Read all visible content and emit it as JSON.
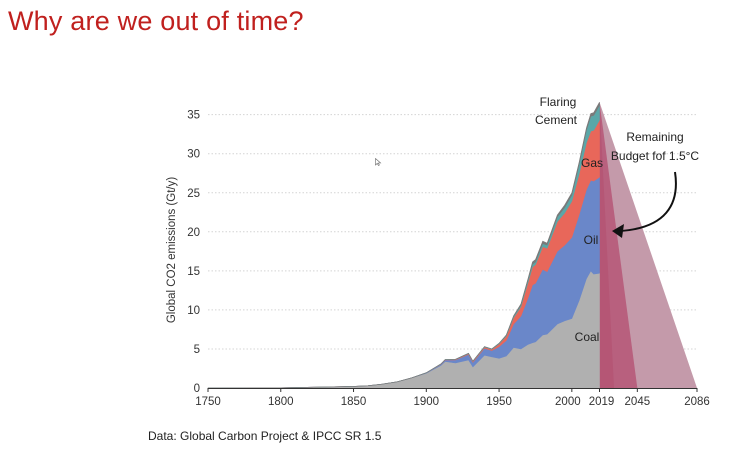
{
  "slide": {
    "title": "Why are we out of time?",
    "source_caption": "Data: Global Carbon Project & IPCC SR 1.5"
  },
  "colors": {
    "title": "#c0201e",
    "coal": "#b0b0b0",
    "oil": "#6a87c9",
    "gas": "#e8675a",
    "cement": "#5aa7a8",
    "flaring": "#7a7a7a",
    "budget_outer": "#c49aaa",
    "budget_middle": "#b8607e",
    "budget_inner": "#b2506f"
  },
  "chart_data": {
    "type": "area",
    "title": "",
    "ylabel": "Global CO2 emissions (Gt/y)",
    "xlabel": "",
    "xlim": [
      1750,
      2086
    ],
    "ylim": [
      0,
      37
    ],
    "x_ticks": [
      1750,
      1800,
      1850,
      1900,
      1950,
      2000,
      2019,
      2045,
      2086
    ],
    "y_ticks": [
      0,
      5,
      10,
      15,
      20,
      25,
      30,
      35
    ],
    "grid": "horizontal dotted",
    "stack_order": [
      "Coal",
      "Oil",
      "Gas",
      "Cement",
      "Flaring"
    ],
    "years": [
      1750,
      1800,
      1850,
      1860,
      1870,
      1880,
      1890,
      1900,
      1910,
      1913,
      1920,
      1929,
      1932,
      1940,
      1945,
      1950,
      1955,
      1960,
      1965,
      1970,
      1973,
      1975,
      1980,
      1983,
      1990,
      1995,
      2000,
      2005,
      2010,
      2013,
      2015,
      2019
    ],
    "series": [
      {
        "name": "Coal",
        "values": [
          0.01,
          0.03,
          0.2,
          0.3,
          0.5,
          0.8,
          1.3,
          1.9,
          2.9,
          3.4,
          3.2,
          3.6,
          2.7,
          4.2,
          4.0,
          3.8,
          4.1,
          5.2,
          5.0,
          5.6,
          5.8,
          5.9,
          6.8,
          6.9,
          8.2,
          8.6,
          8.9,
          11.2,
          14.0,
          15.0,
          14.6,
          14.7
        ]
      },
      {
        "name": "Oil",
        "values": [
          0,
          0,
          0,
          0,
          0,
          0,
          0,
          0.05,
          0.15,
          0.2,
          0.4,
          0.7,
          0.6,
          0.9,
          0.8,
          1.5,
          2.0,
          3.0,
          4.2,
          6.0,
          7.4,
          7.5,
          8.4,
          8.0,
          9.3,
          9.7,
          10.4,
          11.0,
          11.4,
          11.6,
          11.9,
          12.3
        ]
      },
      {
        "name": "Gas",
        "values": [
          0,
          0,
          0,
          0,
          0,
          0,
          0,
          0,
          0.02,
          0.03,
          0.05,
          0.1,
          0.1,
          0.15,
          0.15,
          0.35,
          0.55,
          0.8,
          1.2,
          2.0,
          2.3,
          2.4,
          2.9,
          3.0,
          3.8,
          4.1,
          4.6,
          5.2,
          6.0,
          6.3,
          6.5,
          7.3
        ]
      },
      {
        "name": "Cement",
        "values": [
          0,
          0,
          0,
          0,
          0,
          0,
          0,
          0.01,
          0.02,
          0.02,
          0.03,
          0.04,
          0.04,
          0.05,
          0.05,
          0.07,
          0.1,
          0.15,
          0.2,
          0.3,
          0.35,
          0.35,
          0.4,
          0.4,
          0.6,
          0.7,
          0.8,
          1.2,
          1.6,
          1.9,
          1.9,
          1.9
        ]
      },
      {
        "name": "Flaring",
        "values": [
          0,
          0,
          0,
          0,
          0,
          0,
          0,
          0,
          0,
          0,
          0,
          0,
          0,
          0,
          0,
          0.02,
          0.05,
          0.1,
          0.15,
          0.2,
          0.3,
          0.3,
          0.3,
          0.25,
          0.25,
          0.3,
          0.3,
          0.3,
          0.3,
          0.35,
          0.35,
          0.4
        ]
      }
    ],
    "series_labels": {
      "coal": "Coal",
      "oil": "Oil",
      "gas": "Gas",
      "cement": "Cement",
      "flaring": "Flaring"
    },
    "budget": {
      "peak_year": 2019,
      "peak_value": 36.6,
      "inner_end_year": 2045,
      "outer_end_year": 2086,
      "annotation": [
        "Remaining",
        "Budget fof 1.5°C"
      ]
    }
  }
}
